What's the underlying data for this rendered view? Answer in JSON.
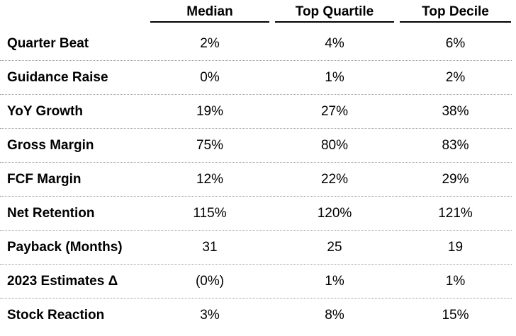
{
  "table": {
    "columns": [
      "Median",
      "Top Quartile",
      "Top Decile"
    ],
    "rows": [
      {
        "label": "Quarter Beat",
        "values": [
          "2%",
          "4%",
          "6%"
        ]
      },
      {
        "label": "Guidance Raise",
        "values": [
          "0%",
          "1%",
          "2%"
        ]
      },
      {
        "label": "YoY Growth",
        "values": [
          "19%",
          "27%",
          "38%"
        ]
      },
      {
        "label": "Gross Margin",
        "values": [
          "75%",
          "80%",
          "83%"
        ]
      },
      {
        "label": "FCF Margin",
        "values": [
          "12%",
          "22%",
          "29%"
        ]
      },
      {
        "label": "Net Retention",
        "values": [
          "115%",
          "120%",
          "121%"
        ]
      },
      {
        "label": "Payback (Months)",
        "values": [
          "31",
          "25",
          "19"
        ]
      },
      {
        "label": "2023 Estimates Δ",
        "values": [
          "(0%)",
          "1%",
          "1%"
        ]
      },
      {
        "label": "Stock Reaction",
        "values": [
          "3%",
          "8%",
          "15%"
        ]
      }
    ]
  }
}
